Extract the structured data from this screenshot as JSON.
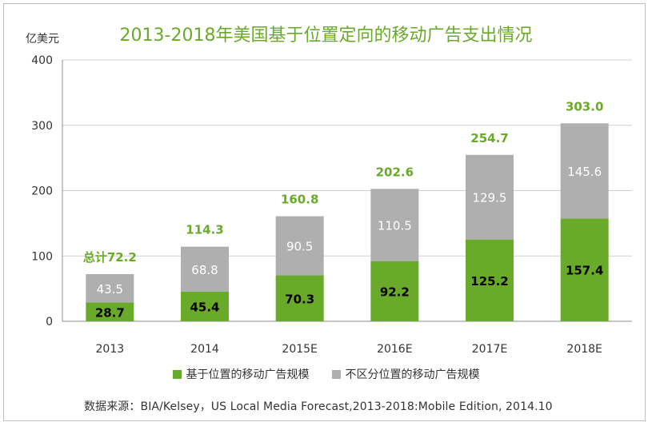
{
  "chart_data": {
    "type": "stacked-bar",
    "title": "2013-2018年美国基于位置定向的移动广告支出情况",
    "ylabel": "亿美元",
    "ylim": [
      0,
      400
    ],
    "yticks": [
      0,
      100,
      200,
      300,
      400
    ],
    "categories": [
      "2013",
      "2014",
      "2015E",
      "2016E",
      "2017E",
      "2018E"
    ],
    "series": [
      {
        "name": "基于位置的移动广告规模",
        "color": "#6aaa2a",
        "values": [
          28.7,
          45.4,
          70.3,
          92.2,
          125.2,
          157.4
        ]
      },
      {
        "name": "不区分位置的移动广告规模",
        "color": "#afafaf",
        "values": [
          43.5,
          68.8,
          90.5,
          110.5,
          129.5,
          145.6
        ]
      }
    ],
    "total_labels": [
      "总计72.2",
      "114.3",
      "160.8",
      "202.6",
      "254.7",
      "303.0"
    ],
    "total_color": "#6aaa2a",
    "grid": true,
    "legend_position": "bottom"
  },
  "source_text": "数据来源：BIA/Kelsey，US Local Media Forecast,2013-2018:Mobile Edition, 2014.10"
}
